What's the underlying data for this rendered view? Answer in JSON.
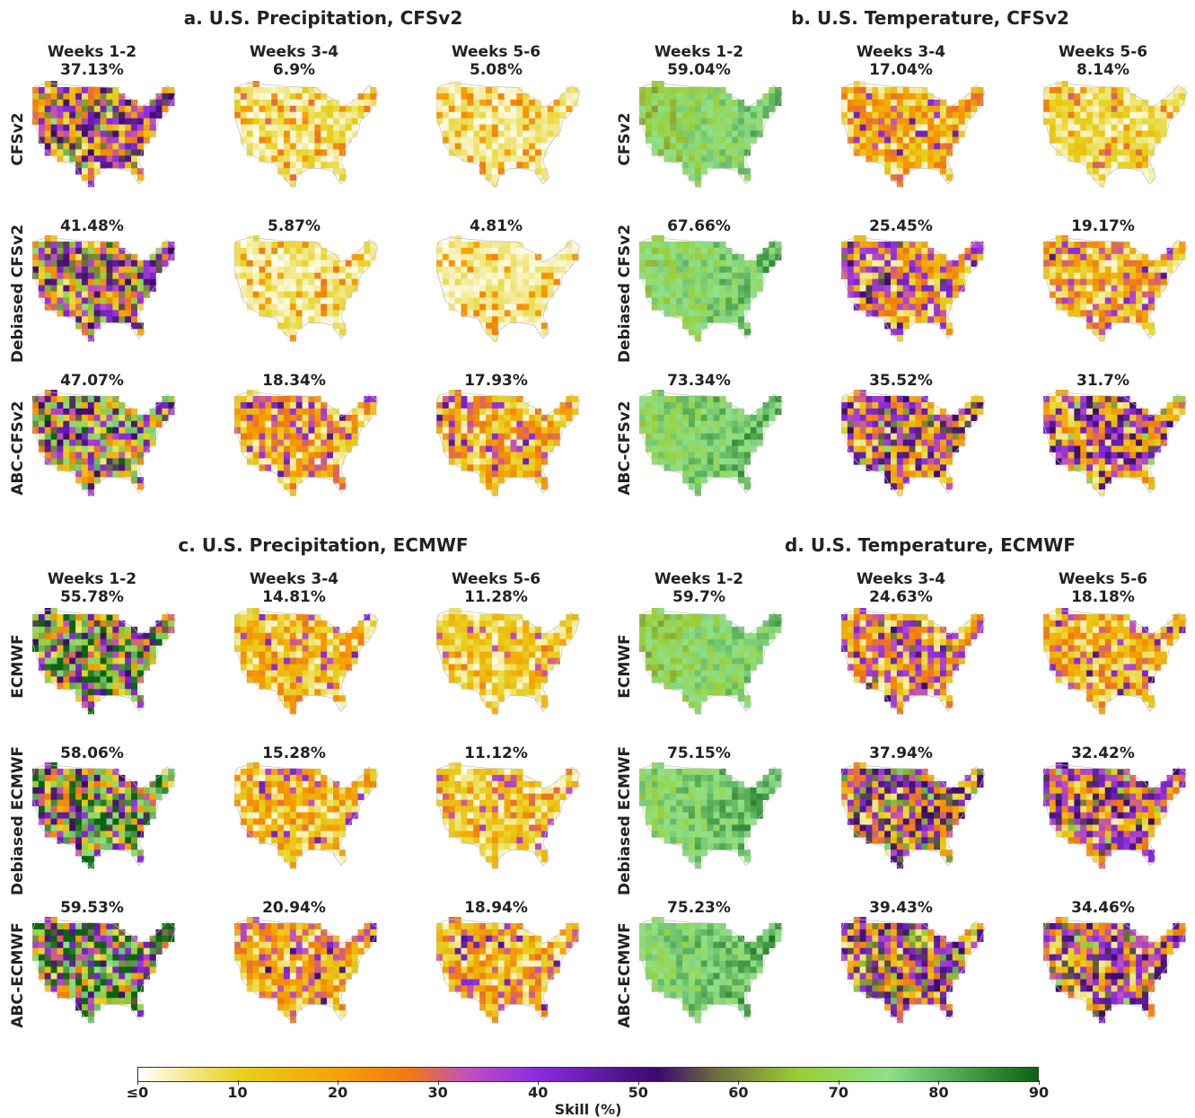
{
  "colormap": {
    "stops": [
      {
        "v": 0,
        "c": "#ffffff"
      },
      {
        "v": 10,
        "c": "#e6d320"
      },
      {
        "v": 20,
        "c": "#f5a100"
      },
      {
        "v": 27,
        "c": "#f07a10"
      },
      {
        "v": 33,
        "c": "#c050c0"
      },
      {
        "v": 40,
        "c": "#8a2be2"
      },
      {
        "v": 52,
        "c": "#3a0a6a"
      },
      {
        "v": 58,
        "c": "#6e6e40"
      },
      {
        "v": 66,
        "c": "#9acd32"
      },
      {
        "v": 75,
        "c": "#8fe08a"
      },
      {
        "v": 90,
        "c": "#0a6410"
      }
    ]
  },
  "colorbar": {
    "ticks": [
      "≤0",
      "10",
      "20",
      "30",
      "40",
      "50",
      "60",
      "70",
      "80",
      "90"
    ],
    "label": "Skill (%)"
  },
  "chart_data": [
    {
      "type": "heatmap",
      "title": "a. U.S. Precipitation, CFSv2",
      "columns": [
        "Weeks 1-2",
        "Weeks 3-4",
        "Weeks 5-6"
      ],
      "rows": [
        "CFSv2",
        "Debiased CFSv2",
        "ABC-CFSv2"
      ],
      "skill_values": [
        [
          "37.13%",
          "6.9%",
          "5.08%"
        ],
        [
          "41.48%",
          "5.87%",
          "4.81%"
        ],
        [
          "47.07%",
          "18.34%",
          "17.93%"
        ]
      ]
    },
    {
      "type": "heatmap",
      "title": "b. U.S. Temperature, CFSv2",
      "columns": [
        "Weeks 1-2",
        "Weeks 3-4",
        "Weeks 5-6"
      ],
      "rows": [
        "CFSv2",
        "Debiased CFSv2",
        "ABC-CFSv2"
      ],
      "skill_values": [
        [
          "59.04%",
          "17.04%",
          "8.14%"
        ],
        [
          "67.66%",
          "25.45%",
          "19.17%"
        ],
        [
          "73.34%",
          "35.52%",
          "31.7%"
        ]
      ]
    },
    {
      "type": "heatmap",
      "title": "c. U.S. Precipitation, ECMWF",
      "columns": [
        "Weeks 1-2",
        "Weeks 3-4",
        "Weeks 5-6"
      ],
      "rows": [
        "ECMWF",
        "Debiased ECMWF",
        "ABC-ECMWF"
      ],
      "skill_values": [
        [
          "55.78%",
          "14.81%",
          "11.28%"
        ],
        [
          "58.06%",
          "15.28%",
          "11.12%"
        ],
        [
          "59.53%",
          "20.94%",
          "18.94%"
        ]
      ]
    },
    {
      "type": "heatmap",
      "title": "d. U.S. Temperature, ECMWF",
      "columns": [
        "Weeks 1-2",
        "Weeks 3-4",
        "Weeks 5-6"
      ],
      "rows": [
        "ECMWF",
        "Debiased ECMWF",
        "ABC-ECMWF"
      ],
      "skill_values": [
        [
          "59.7%",
          "24.63%",
          "18.18%"
        ],
        [
          "75.15%",
          "37.94%",
          "32.42%"
        ],
        [
          "75.23%",
          "39.43%",
          "34.46%"
        ]
      ]
    }
  ]
}
